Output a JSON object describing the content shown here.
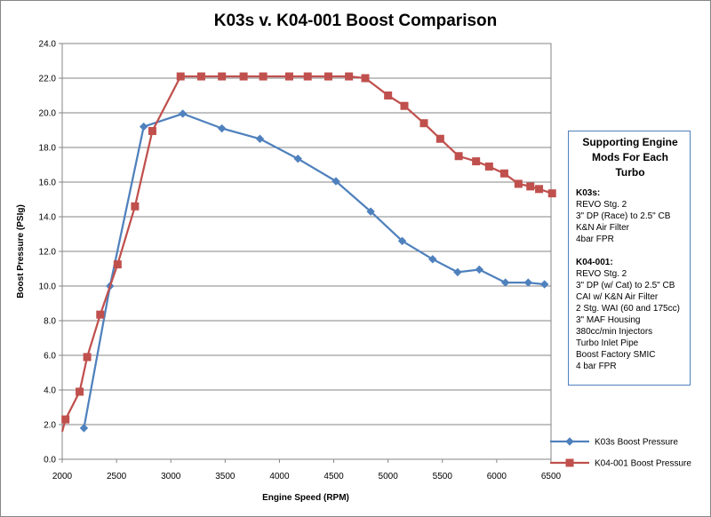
{
  "chart_data": {
    "type": "line",
    "title": "K03s v. K04-001  Boost Comparison",
    "xlabel": "Engine Speed (RPM)",
    "ylabel": "Boost Pressure (PSIg)",
    "xlim": [
      2000,
      6500
    ],
    "ylim": [
      0,
      24
    ],
    "x_ticks": [
      "2000",
      "2500",
      "3000",
      "3500",
      "4000",
      "4500",
      "5000",
      "5500",
      "6000",
      "6500"
    ],
    "y_ticks": [
      "0.0",
      "2.0",
      "4.0",
      "6.0",
      "8.0",
      "10.0",
      "12.0",
      "14.0",
      "16.0",
      "18.0",
      "20.0",
      "22.0",
      "24.0"
    ],
    "grid": "horizontal",
    "legend_position": "right",
    "series": [
      {
        "name": "K03s Boost Pressure",
        "color": "#4f81bd",
        "marker": "diamond",
        "points": [
          [
            2200,
            1.8
          ],
          [
            2440,
            10.0
          ],
          [
            2750,
            19.2
          ],
          [
            3110,
            19.95
          ],
          [
            3470,
            19.1
          ],
          [
            3820,
            18.5
          ],
          [
            4170,
            17.35
          ],
          [
            4520,
            16.05
          ],
          [
            4840,
            14.3
          ],
          [
            5130,
            12.6
          ],
          [
            5410,
            11.55
          ],
          [
            5640,
            10.8
          ],
          [
            5840,
            10.95
          ],
          [
            6080,
            10.2
          ],
          [
            6290,
            10.2
          ],
          [
            6440,
            10.1
          ]
        ]
      },
      {
        "name": "K04-001 Boost Pressure",
        "color": "#c0504d",
        "marker": "square",
        "points": [
          [
            2000,
            1.6
          ],
          [
            2030,
            2.3
          ],
          [
            2160,
            3.9
          ],
          [
            2230,
            5.9
          ],
          [
            2350,
            8.35
          ],
          [
            2510,
            11.25
          ],
          [
            2670,
            14.6
          ],
          [
            2830,
            18.95
          ],
          [
            3090,
            22.1
          ],
          [
            3280,
            22.1
          ],
          [
            3470,
            22.1
          ],
          [
            3670,
            22.1
          ],
          [
            3850,
            22.1
          ],
          [
            4090,
            22.1
          ],
          [
            4260,
            22.1
          ],
          [
            4450,
            22.1
          ],
          [
            4640,
            22.1
          ],
          [
            4790,
            22.0
          ],
          [
            5000,
            21.0
          ],
          [
            5150,
            20.4
          ],
          [
            5330,
            19.4
          ],
          [
            5480,
            18.5
          ],
          [
            5650,
            17.5
          ],
          [
            5810,
            17.2
          ],
          [
            5930,
            16.9
          ],
          [
            6070,
            16.5
          ],
          [
            6200,
            15.9
          ],
          [
            6310,
            15.75
          ],
          [
            6390,
            15.6
          ],
          [
            6510,
            15.35
          ]
        ]
      }
    ]
  },
  "notes": {
    "heading_line1": "Supporting Engine",
    "heading_line2": "Mods For Each Turbo",
    "k03_title": "K03s:",
    "k03_items": [
      "REVO Stg. 2",
      "3\" DP (Race) to 2.5\" CB",
      "K&N Air Filter",
      "4bar FPR"
    ],
    "k04_title": "K04-001:",
    "k04_items": [
      "REVO Stg. 2",
      "3\" DP (w/ Cat) to 2.5\" CB",
      "CAI w/ K&N Air Filter",
      "2 Stg. WAI (60 and 175cc)",
      "3\" MAF Housing",
      "380cc/min Injectors",
      "Turbo Inlet Pipe",
      "Boost Factory  SMIC",
      "4 bar FPR"
    ]
  }
}
